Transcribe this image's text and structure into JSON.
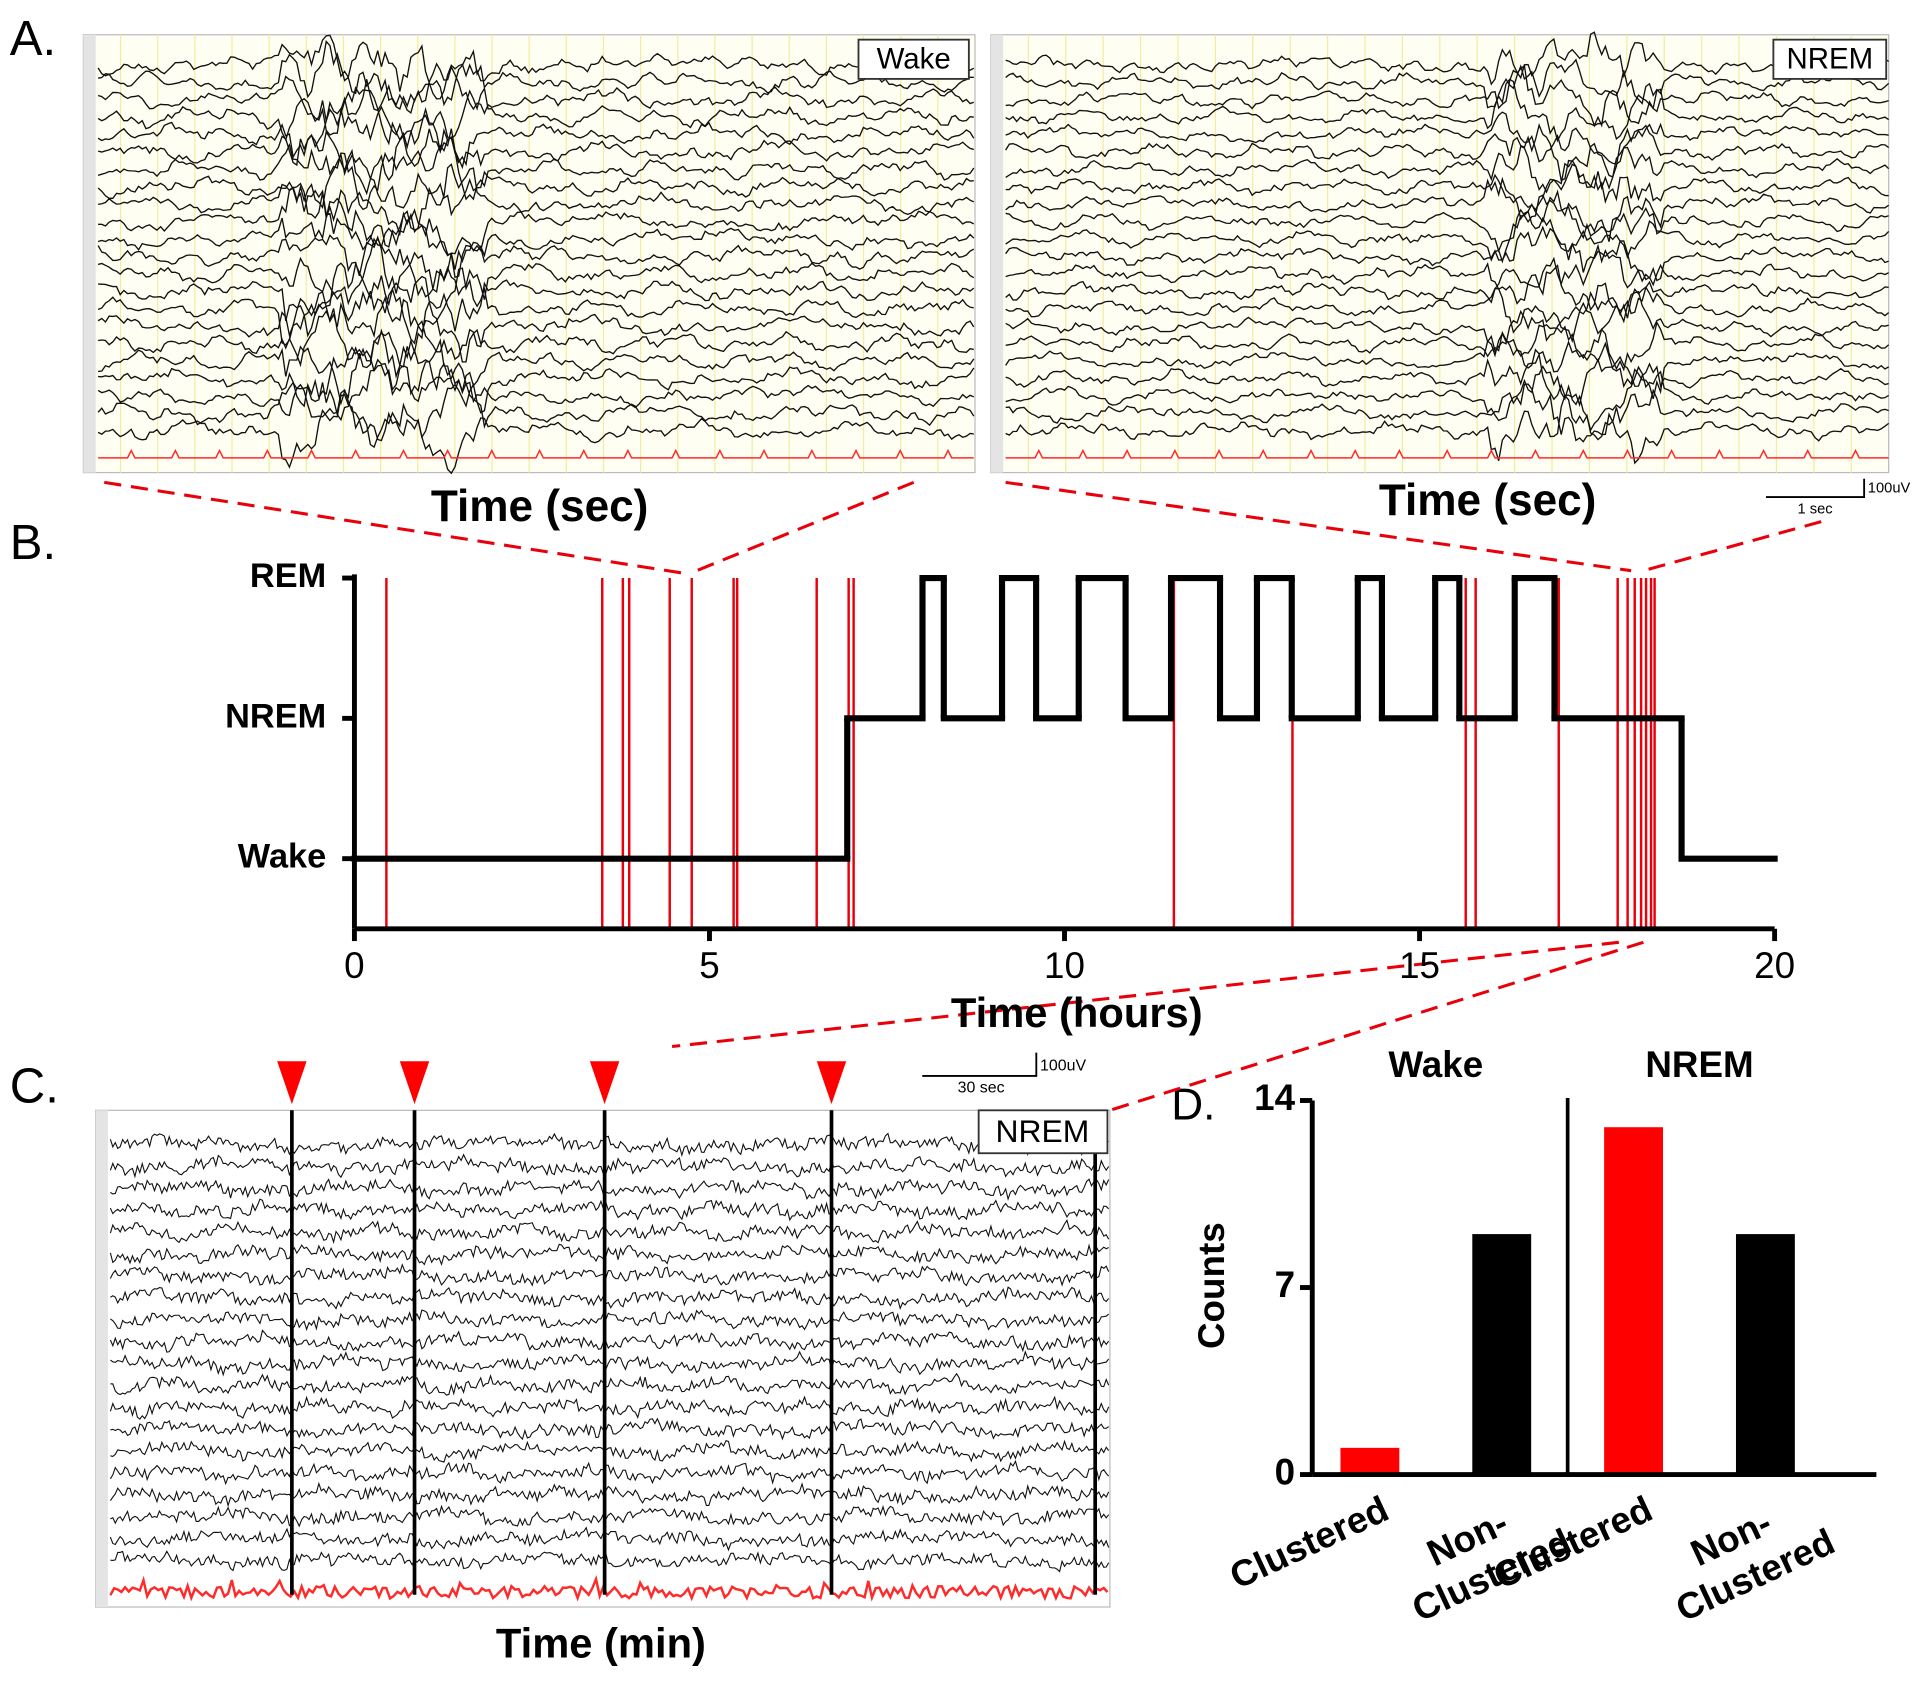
{
  "panel_letters": [
    "A.",
    "B.",
    "C.",
    "D."
  ],
  "panel_a": {
    "left_label": "Wake",
    "right_label": "NREM",
    "left_xlabel": "Time (sec)",
    "right_xlabel": "Time (sec)",
    "scale_amp": "100uV",
    "scale_time": "1 sec"
  },
  "panel_c": {
    "label": "NREM",
    "scale_amp": "100uV",
    "scale_time": "30 sec",
    "xlabel": "Time (min)"
  },
  "chart_data": [
    {
      "type": "step",
      "xlabel": "Time (hours)",
      "x": [
        0,
        6.94,
        8.0,
        8.3,
        9.12,
        9.6,
        10.2,
        10.86,
        11.5,
        12.19,
        12.71,
        13.2,
        14.13,
        14.47,
        15.22,
        15.56,
        16.34,
        16.9,
        18.69
      ],
      "values": [
        0,
        1,
        2,
        1,
        2,
        1,
        2,
        1,
        2,
        1,
        2,
        1,
        2,
        1,
        2,
        1,
        2,
        1,
        0
      ],
      "color": "#000000",
      "event_x": [
        0.45,
        3.49,
        3.78,
        3.87,
        4.44,
        4.75,
        5.34,
        5.39,
        6.51,
        6.96,
        7.03,
        11.54,
        13.21,
        15.65,
        15.79,
        16.96,
        17.79,
        17.93,
        18.03,
        18.12,
        18.19,
        18.26,
        18.31
      ],
      "event_color": "#e8000b",
      "xlim": [
        0,
        20
      ],
      "xticks": [
        0,
        5,
        10,
        15,
        20
      ],
      "ylim": [
        -0.5,
        2
      ],
      "yticks": [
        {
          "value": 0,
          "label": "Wake"
        },
        {
          "value": 1,
          "label": "NREM"
        },
        {
          "value": 2,
          "label": "REM"
        }
      ]
    },
    {
      "type": "bar",
      "ylabel": "Counts",
      "groups": [
        "Wake",
        "NREM"
      ],
      "categories": [
        "Clustered",
        "Non-\nClustered",
        "Clustered",
        "Non-\nClustered"
      ],
      "values": [
        1,
        9,
        13,
        9
      ],
      "colors": [
        "#ff0000",
        "#000000",
        "#ff0000",
        "#000000"
      ],
      "ylim": [
        0,
        14
      ],
      "yticks": [
        0,
        7,
        14
      ]
    }
  ]
}
